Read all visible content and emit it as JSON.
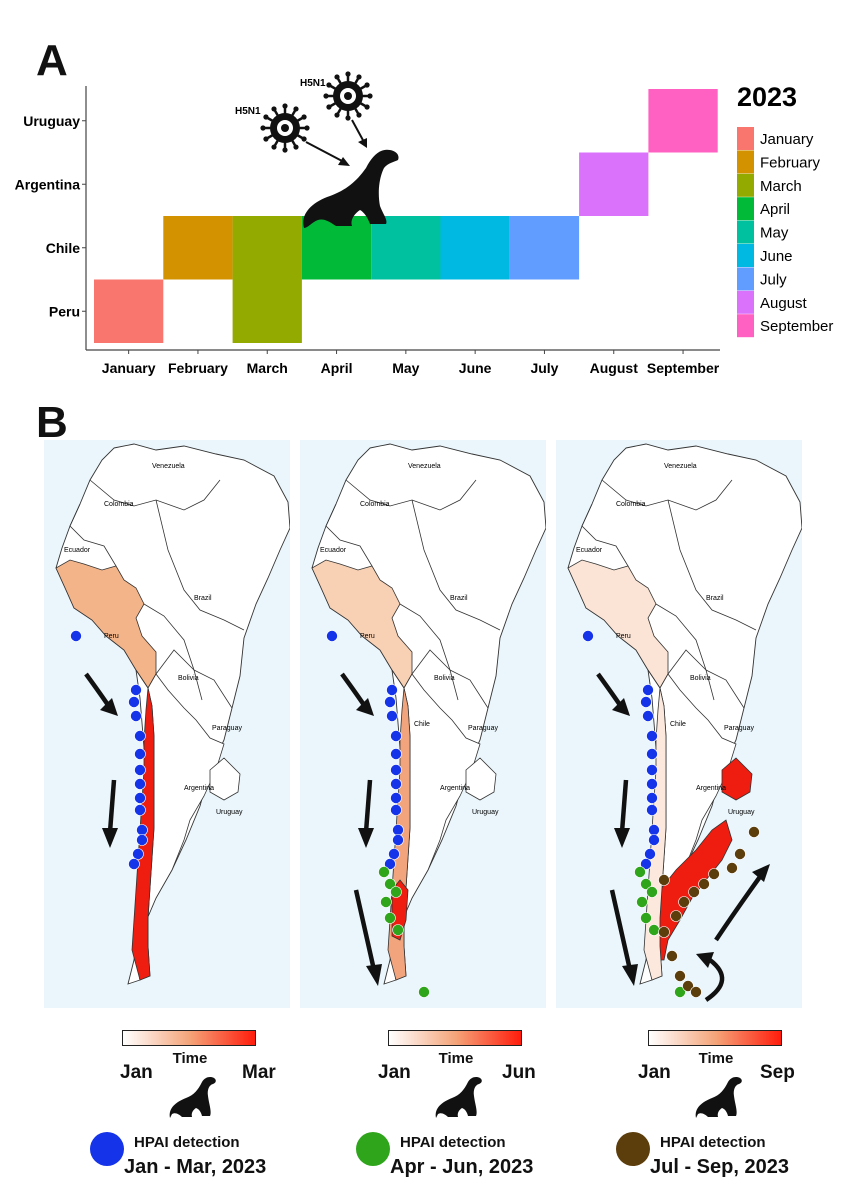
{
  "panel_a_letter": "A",
  "panel_b_letter": "B",
  "chart_data": {
    "type": "heatmap",
    "categories_x": [
      "January",
      "February",
      "March",
      "April",
      "May",
      "June",
      "July",
      "August",
      "September"
    ],
    "categories_y": [
      "Peru",
      "Chile",
      "Argentina",
      "Uruguay"
    ],
    "cells": [
      {
        "country": "Peru",
        "month": "January"
      },
      {
        "country": "Chile",
        "month": "February"
      },
      {
        "country": "Peru",
        "month": "March"
      },
      {
        "country": "Chile",
        "month": "March"
      },
      {
        "country": "Chile",
        "month": "April"
      },
      {
        "country": "Chile",
        "month": "May"
      },
      {
        "country": "Chile",
        "month": "June"
      },
      {
        "country": "Chile",
        "month": "July"
      },
      {
        "country": "Argentina",
        "month": "August"
      },
      {
        "country": "Uruguay",
        "month": "September"
      }
    ],
    "legend_title": "2023",
    "legend_placement": "right",
    "legend": [
      {
        "name": "January",
        "color": "#F8766D"
      },
      {
        "name": "February",
        "color": "#D39200"
      },
      {
        "name": "March",
        "color": "#93AA00"
      },
      {
        "name": "April",
        "color": "#00BA38"
      },
      {
        "name": "May",
        "color": "#00C19F"
      },
      {
        "name": "June",
        "color": "#00B9E3"
      },
      {
        "name": "July",
        "color": "#619CFF"
      },
      {
        "name": "August",
        "color": "#DB72FB"
      },
      {
        "name": "September",
        "color": "#FF61C3"
      }
    ],
    "grid": false,
    "virus_labels": [
      "H5N1",
      "H5N1"
    ]
  },
  "maps": {
    "countries": {
      "venezuela": "Venezuela",
      "colombia": "Colombia",
      "ecuador": "Ecuador",
      "brazil": "Brazil",
      "peru": "Peru",
      "bolivia": "Bolivia",
      "paraguay": "Paraguay",
      "chile": "Chile",
      "argentina": "Argentina",
      "uruguay": "Uruguay"
    },
    "panels": [
      {
        "start": "Jan",
        "end": "Mar",
        "time": "Time",
        "hpai": "HPAI detection",
        "range": "Jan - Mar, 2023",
        "dot_color": "#1533e8"
      },
      {
        "start": "Jan",
        "end": "Jun",
        "time": "Time",
        "hpai": "HPAI detection",
        "range": "Apr - Jun, 2023",
        "dot_color": "#2fa51c"
      },
      {
        "start": "Jan",
        "end": "Sep",
        "time": "Time",
        "hpai": "HPAI detection",
        "range": "Jul - Sep, 2023",
        "dot_color": "#5c3d0c"
      }
    ]
  }
}
